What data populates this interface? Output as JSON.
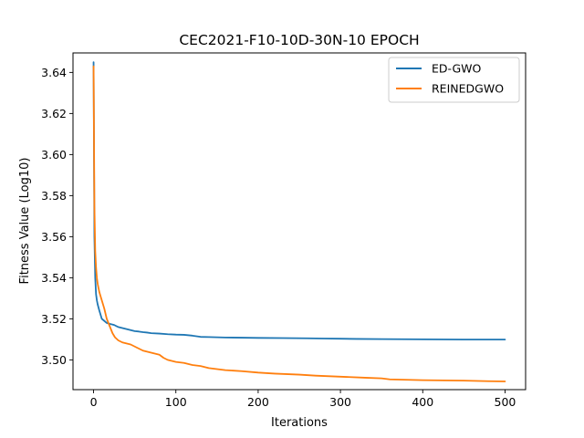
{
  "chart_data": {
    "type": "line",
    "title": "CEC2021-F10-10D-30N-10 EPOCH",
    "xlabel": "Iterations",
    "ylabel": "Fitness Value (Log10)",
    "xlim": [
      -25,
      525
    ],
    "ylim": [
      3.4855,
      3.6495
    ],
    "xticks": [
      0,
      100,
      200,
      300,
      400,
      500
    ],
    "yticks": [
      3.5,
      3.52,
      3.54,
      3.56,
      3.58,
      3.6,
      3.62,
      3.64
    ],
    "xtick_labels": [
      "0",
      "100",
      "200",
      "300",
      "400",
      "500"
    ],
    "ytick_labels": [
      "3.50",
      "3.52",
      "3.54",
      "3.56",
      "3.58",
      "3.60",
      "3.62",
      "3.64"
    ],
    "legend_position": "top-right",
    "series": [
      {
        "name": "ED-GWO",
        "color": "#1f77b4",
        "x": [
          0,
          1,
          2,
          3,
          4,
          5,
          7,
          10,
          13,
          16,
          20,
          25,
          30,
          35,
          40,
          45,
          50,
          55,
          60,
          65,
          70,
          80,
          90,
          100,
          110,
          120,
          125,
          130,
          140,
          150,
          160,
          180,
          200,
          230,
          260,
          280,
          300,
          320,
          350,
          400,
          450,
          500
        ],
        "values": [
          3.645,
          3.56,
          3.54,
          3.532,
          3.529,
          3.527,
          3.524,
          3.52,
          3.519,
          3.518,
          3.5175,
          3.517,
          3.516,
          3.5155,
          3.515,
          3.5145,
          3.514,
          3.5138,
          3.5135,
          3.5133,
          3.513,
          3.5128,
          3.5125,
          3.5123,
          3.5122,
          3.5118,
          3.5115,
          3.5112,
          3.5111,
          3.511,
          3.5109,
          3.5108,
          3.5107,
          3.5106,
          3.5105,
          3.5104,
          3.5103,
          3.5102,
          3.5101,
          3.51,
          3.5099,
          3.5099
        ]
      },
      {
        "name": "REINEDGWO",
        "color": "#ff7f0e",
        "x": [
          0,
          1,
          2,
          3,
          4,
          5,
          7,
          10,
          13,
          16,
          20,
          23,
          26,
          30,
          35,
          40,
          45,
          50,
          55,
          60,
          70,
          80,
          85,
          90,
          100,
          110,
          115,
          120,
          130,
          140,
          150,
          160,
          180,
          200,
          220,
          250,
          270,
          300,
          330,
          350,
          360,
          400,
          450,
          480,
          500
        ],
        "values": [
          3.643,
          3.575,
          3.553,
          3.545,
          3.54,
          3.537,
          3.533,
          3.529,
          3.525,
          3.52,
          3.516,
          3.513,
          3.511,
          3.5095,
          3.5085,
          3.508,
          3.5075,
          3.5065,
          3.5055,
          3.5045,
          3.5035,
          3.5025,
          3.501,
          3.5,
          3.499,
          3.4985,
          3.498,
          3.4975,
          3.497,
          3.496,
          3.4955,
          3.495,
          3.4945,
          3.4938,
          3.4933,
          3.4928,
          3.4923,
          3.4918,
          3.4913,
          3.491,
          3.4905,
          3.4901,
          3.4899,
          3.4896,
          3.4895
        ]
      }
    ]
  }
}
